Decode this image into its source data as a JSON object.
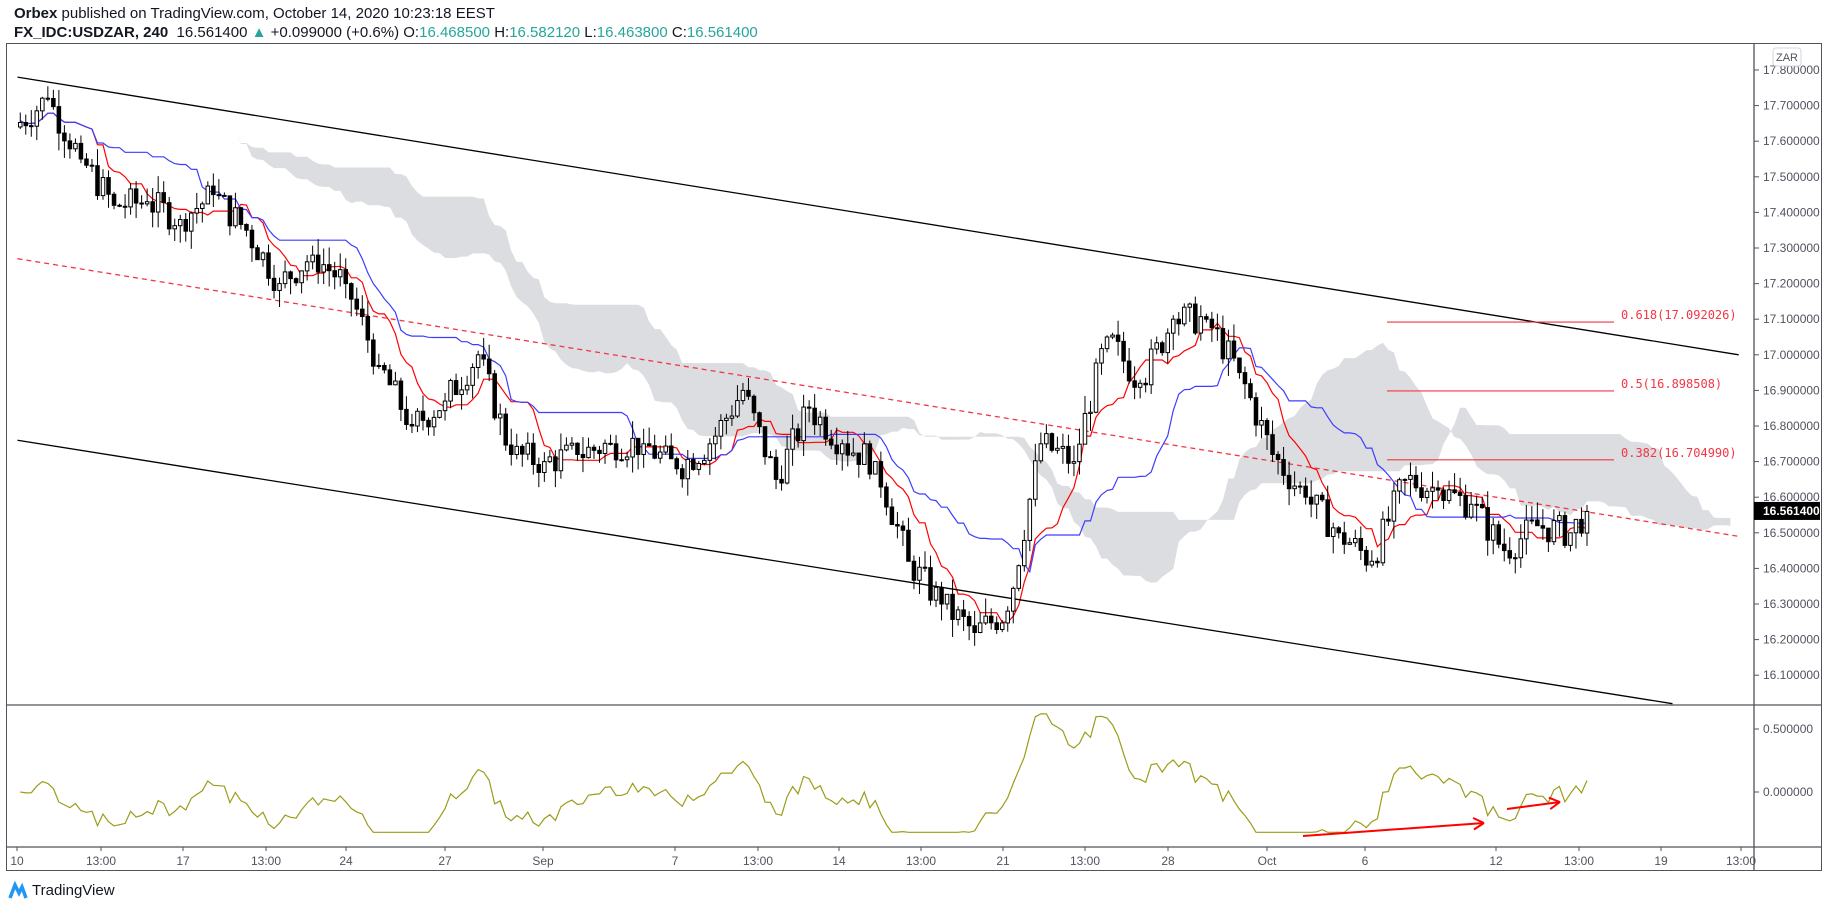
{
  "header": {
    "publisher": "Orbex",
    "published_text": "published on TradingView.com, October 14, 2020 10:23:18 EEST",
    "symbol": "FX_IDC:USDZAR, 240",
    "last": "16.561400",
    "change": "+0.099000 (+0.6%)",
    "o_label": "O:",
    "o": "16.468500",
    "h_label": "H:",
    "h": "16.582120",
    "l_label": "L:",
    "l": "16.463800",
    "c_label": "C:",
    "c": "16.561400"
  },
  "currency_badge": "ZAR",
  "footer": {
    "brand": "TradingView"
  },
  "colors": {
    "tenkan": "#ff0000",
    "kijun": "#3d3dff",
    "cloud": "#d6d7db",
    "oscillator": "#9c9c1a",
    "fib": "#f23645",
    "up_arrow": "#26a69a"
  },
  "chart_data": {
    "type": "candlestick",
    "interval": "240",
    "indicators": [
      "Ichimoku Cloud",
      "Oscillator (lower pane)"
    ],
    "price_axis": {
      "ylim": [
        16.03,
        17.85
      ],
      "ticks": [
        "17.800000",
        "17.700000",
        "17.600000",
        "17.500000",
        "17.400000",
        "17.300000",
        "17.200000",
        "17.100000",
        "17.000000",
        "16.900000",
        "16.800000",
        "16.700000",
        "16.600000",
        "16.500000",
        "16.400000",
        "16.300000",
        "16.200000",
        "16.100000"
      ],
      "last_price_label": "16.561400"
    },
    "osc_axis": {
      "ylim": [
        -0.3,
        0.65
      ],
      "ticks": [
        "0.500000",
        "0.000000"
      ]
    },
    "x_ticks": [
      "10",
      "13:00",
      "17",
      "13:00",
      "24",
      "27",
      "Sep",
      "7",
      "13:00",
      "14",
      "13:00",
      "21",
      "13:00",
      "28",
      "Oct",
      "6",
      "12",
      "13:00",
      "19",
      "13:00"
    ],
    "daily_close": [
      [
        "2020-08-10",
        17.72
      ],
      [
        "2020-08-11",
        17.55
      ],
      [
        "2020-08-12",
        17.42
      ],
      [
        "2020-08-13",
        17.43
      ],
      [
        "2020-08-14",
        17.38
      ],
      [
        "2020-08-17",
        17.45
      ],
      [
        "2020-08-18",
        17.35
      ],
      [
        "2020-08-19",
        17.2
      ],
      [
        "2020-08-20",
        17.28
      ],
      [
        "2020-08-21",
        17.2
      ],
      [
        "2020-08-24",
        16.97
      ],
      [
        "2020-08-25",
        16.8
      ],
      [
        "2020-08-26",
        16.87
      ],
      [
        "2020-08-27",
        17.0
      ],
      [
        "2020-08-28",
        16.72
      ],
      [
        "2020-08-31",
        16.7
      ],
      [
        "2020-09-01",
        16.72
      ],
      [
        "2020-09-02",
        16.75
      ],
      [
        "2020-09-03",
        16.75
      ],
      [
        "2020-09-04",
        16.68
      ],
      [
        "2020-09-07",
        16.75
      ],
      [
        "2020-09-08",
        16.9
      ],
      [
        "2020-09-09",
        16.65
      ],
      [
        "2020-09-10",
        16.85
      ],
      [
        "2020-09-11",
        16.75
      ],
      [
        "2020-09-14",
        16.7
      ],
      [
        "2020-09-15",
        16.42
      ],
      [
        "2020-09-16",
        16.3
      ],
      [
        "2020-09-17",
        16.22
      ],
      [
        "2020-09-18",
        16.28
      ],
      [
        "2020-09-21",
        16.75
      ],
      [
        "2020-09-22",
        16.7
      ],
      [
        "2020-09-23",
        17.05
      ],
      [
        "2020-09-24",
        16.92
      ],
      [
        "2020-09-25",
        17.1
      ],
      [
        "2020-09-28",
        17.1
      ],
      [
        "2020-09-29",
        16.95
      ],
      [
        "2020-09-30",
        16.72
      ],
      [
        "2020-10-01",
        16.6
      ],
      [
        "2020-10-02",
        16.5
      ],
      [
        "2020-10-05",
        16.42
      ],
      [
        "2020-10-06",
        16.65
      ],
      [
        "2020-10-07",
        16.62
      ],
      [
        "2020-10-08",
        16.58
      ],
      [
        "2020-10-09",
        16.45
      ],
      [
        "2020-10-12",
        16.52
      ],
      [
        "2020-10-13",
        16.5
      ],
      [
        "2020-10-14",
        16.56
      ]
    ],
    "fib_levels": [
      {
        "label": "0.618(17.092026)",
        "value": 17.092026
      },
      {
        "label": "0.5(16.898508)",
        "value": 16.898508
      },
      {
        "label": "0.382(16.704990)",
        "value": 16.70499
      }
    ],
    "channel": {
      "upper": [
        [
          "2020-08-10",
          17.78
        ],
        [
          "2020-10-21",
          17.0
        ]
      ],
      "lower": [
        [
          "2020-08-10",
          16.76
        ],
        [
          "2020-10-19",
          16.02
        ]
      ],
      "midline_dashed": [
        [
          "2020-08-10",
          17.27
        ],
        [
          "2020-10-21",
          16.49
        ]
      ]
    }
  }
}
